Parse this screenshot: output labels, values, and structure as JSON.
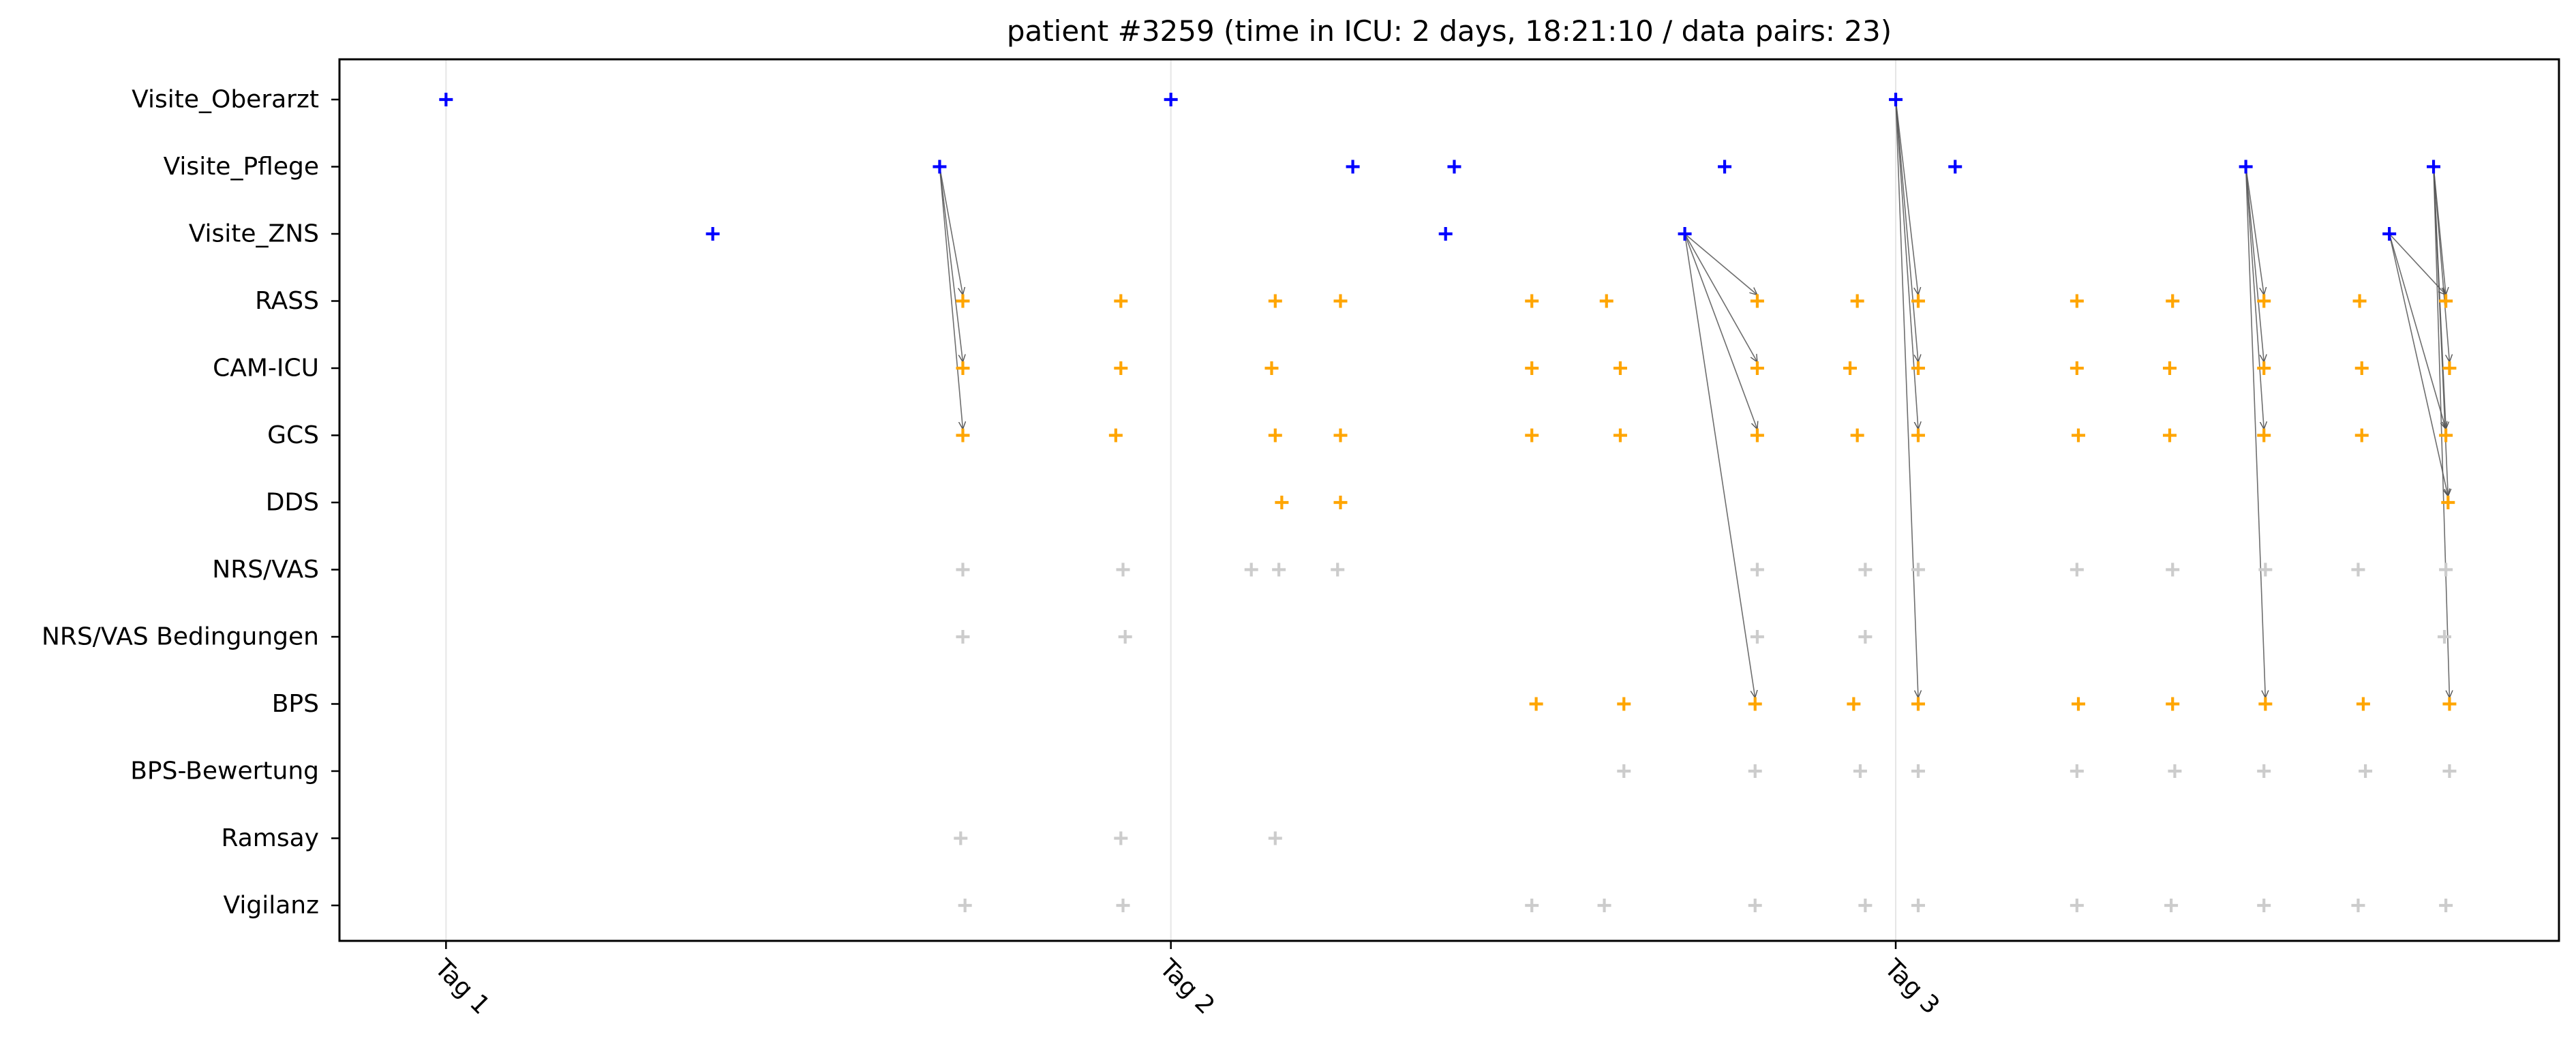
{
  "chart_data": {
    "type": "scatter",
    "title": "patient #3259 (time in ICU: 2 days, 18:21:10 / data pairs: 23)",
    "xlabel": "",
    "ylabel": "",
    "x_unit": "days",
    "xlim": [
      -0.147,
      2.915
    ],
    "x_ticks": [
      {
        "value": 0,
        "label": "Tag 1"
      },
      {
        "value": 1,
        "label": "Tag 2"
      },
      {
        "value": 2,
        "label": "Tag 3"
      }
    ],
    "x_gridlines": [
      0,
      1,
      2
    ],
    "categories": [
      "Visite_Oberarzt",
      "Visite_Pflege",
      "Visite_ZNS",
      "RASS",
      "CAM-ICU",
      "GCS",
      "DDS",
      "NRS/VAS",
      "NRS/VAS Bedingungen",
      "BPS",
      "BPS-Bewertung",
      "Ramsay",
      "Vigilanz"
    ],
    "colors": {
      "visit": "#0000ff",
      "assessment": "#ffa500",
      "unpaired": "#cccccc",
      "arrow": "#555555"
    },
    "series": [
      {
        "category": "Visite_Oberarzt",
        "color": "visit",
        "x": [
          0.0,
          1.0,
          2.0
        ]
      },
      {
        "category": "Visite_Pflege",
        "color": "visit",
        "x": [
          0.681,
          1.251,
          1.391,
          1.764,
          2.082,
          2.483,
          2.742
        ]
      },
      {
        "category": "Visite_ZNS",
        "color": "visit",
        "x": [
          0.368,
          1.379,
          1.709,
          2.681
        ]
      },
      {
        "category": "RASS",
        "color": "assessment",
        "x": [
          0.713,
          0.931,
          1.144,
          1.234,
          1.498,
          1.601,
          1.809,
          1.947,
          2.031,
          2.25,
          2.382,
          2.508,
          2.64,
          2.759
        ]
      },
      {
        "category": "CAM-ICU",
        "color": "assessment",
        "x": [
          0.713,
          0.931,
          1.139,
          1.498,
          1.62,
          1.809,
          1.937,
          2.031,
          2.25,
          2.378,
          2.508,
          2.643,
          2.764
        ]
      },
      {
        "category": "GCS",
        "color": "assessment",
        "x": [
          0.713,
          0.924,
          1.144,
          1.234,
          1.498,
          1.62,
          1.809,
          1.947,
          2.031,
          2.252,
          2.378,
          2.508,
          2.643,
          2.759
        ]
      },
      {
        "category": "DDS",
        "color": "assessment",
        "x": [
          1.153,
          1.234,
          2.762
        ]
      },
      {
        "category": "NRS/VAS",
        "color": "unpaired",
        "x": [
          0.713,
          0.934,
          1.111,
          1.149,
          1.23,
          1.809,
          1.958,
          2.031,
          2.25,
          2.382,
          2.51,
          2.638,
          2.759
        ]
      },
      {
        "category": "NRS/VAS Bedingungen",
        "color": "unpaired",
        "x": [
          0.713,
          0.937,
          1.809,
          1.958,
          2.757
        ]
      },
      {
        "category": "BPS",
        "color": "assessment",
        "x": [
          1.504,
          1.625,
          1.806,
          1.942,
          2.031,
          2.252,
          2.382,
          2.51,
          2.645,
          2.764
        ]
      },
      {
        "category": "BPS-Bewertung",
        "color": "unpaired",
        "x": [
          1.625,
          1.806,
          1.951,
          2.031,
          2.25,
          2.385,
          2.508,
          2.648,
          2.764
        ]
      },
      {
        "category": "Ramsay",
        "color": "unpaired",
        "x": [
          0.71,
          0.931,
          1.144
        ]
      },
      {
        "category": "Vigilanz",
        "color": "unpaired",
        "x": [
          0.716,
          0.934,
          1.498,
          1.598,
          1.806,
          1.958,
          2.031,
          2.25,
          2.38,
          2.508,
          2.638,
          2.759
        ]
      }
    ],
    "pairs": [
      {
        "from": [
          "Visite_Pflege",
          0.681
        ],
        "to": [
          "RASS",
          0.713
        ]
      },
      {
        "from": [
          "Visite_Pflege",
          0.681
        ],
        "to": [
          "CAM-ICU",
          0.713
        ]
      },
      {
        "from": [
          "Visite_Pflege",
          0.681
        ],
        "to": [
          "GCS",
          0.713
        ]
      },
      {
        "from": [
          "Visite_ZNS",
          1.709
        ],
        "to": [
          "RASS",
          1.809
        ]
      },
      {
        "from": [
          "Visite_ZNS",
          1.709
        ],
        "to": [
          "CAM-ICU",
          1.809
        ]
      },
      {
        "from": [
          "Visite_ZNS",
          1.709
        ],
        "to": [
          "GCS",
          1.809
        ]
      },
      {
        "from": [
          "Visite_ZNS",
          1.709
        ],
        "to": [
          "BPS",
          1.806
        ]
      },
      {
        "from": [
          "Visite_Oberarzt",
          2.0
        ],
        "to": [
          "RASS",
          2.031
        ]
      },
      {
        "from": [
          "Visite_Oberarzt",
          2.0
        ],
        "to": [
          "CAM-ICU",
          2.031
        ]
      },
      {
        "from": [
          "Visite_Oberarzt",
          2.0
        ],
        "to": [
          "GCS",
          2.031
        ]
      },
      {
        "from": [
          "Visite_Oberarzt",
          2.0
        ],
        "to": [
          "BPS",
          2.031
        ]
      },
      {
        "from": [
          "Visite_Pflege",
          2.483
        ],
        "to": [
          "RASS",
          2.508
        ]
      },
      {
        "from": [
          "Visite_Pflege",
          2.483
        ],
        "to": [
          "CAM-ICU",
          2.508
        ]
      },
      {
        "from": [
          "Visite_Pflege",
          2.483
        ],
        "to": [
          "GCS",
          2.508
        ]
      },
      {
        "from": [
          "Visite_Pflege",
          2.483
        ],
        "to": [
          "BPS",
          2.51
        ]
      },
      {
        "from": [
          "Visite_Pflege",
          2.742
        ],
        "to": [
          "RASS",
          2.759
        ]
      },
      {
        "from": [
          "Visite_Pflege",
          2.742
        ],
        "to": [
          "CAM-ICU",
          2.764
        ]
      },
      {
        "from": [
          "Visite_Pflege",
          2.742
        ],
        "to": [
          "GCS",
          2.759
        ]
      },
      {
        "from": [
          "Visite_Pflege",
          2.742
        ],
        "to": [
          "DDS",
          2.762
        ]
      },
      {
        "from": [
          "Visite_Pflege",
          2.742
        ],
        "to": [
          "BPS",
          2.764
        ]
      },
      {
        "from": [
          "Visite_ZNS",
          2.681
        ],
        "to": [
          "RASS",
          2.759
        ]
      },
      {
        "from": [
          "Visite_ZNS",
          2.681
        ],
        "to": [
          "GCS",
          2.759
        ]
      },
      {
        "from": [
          "Visite_ZNS",
          2.681
        ],
        "to": [
          "DDS",
          2.762
        ]
      }
    ]
  }
}
